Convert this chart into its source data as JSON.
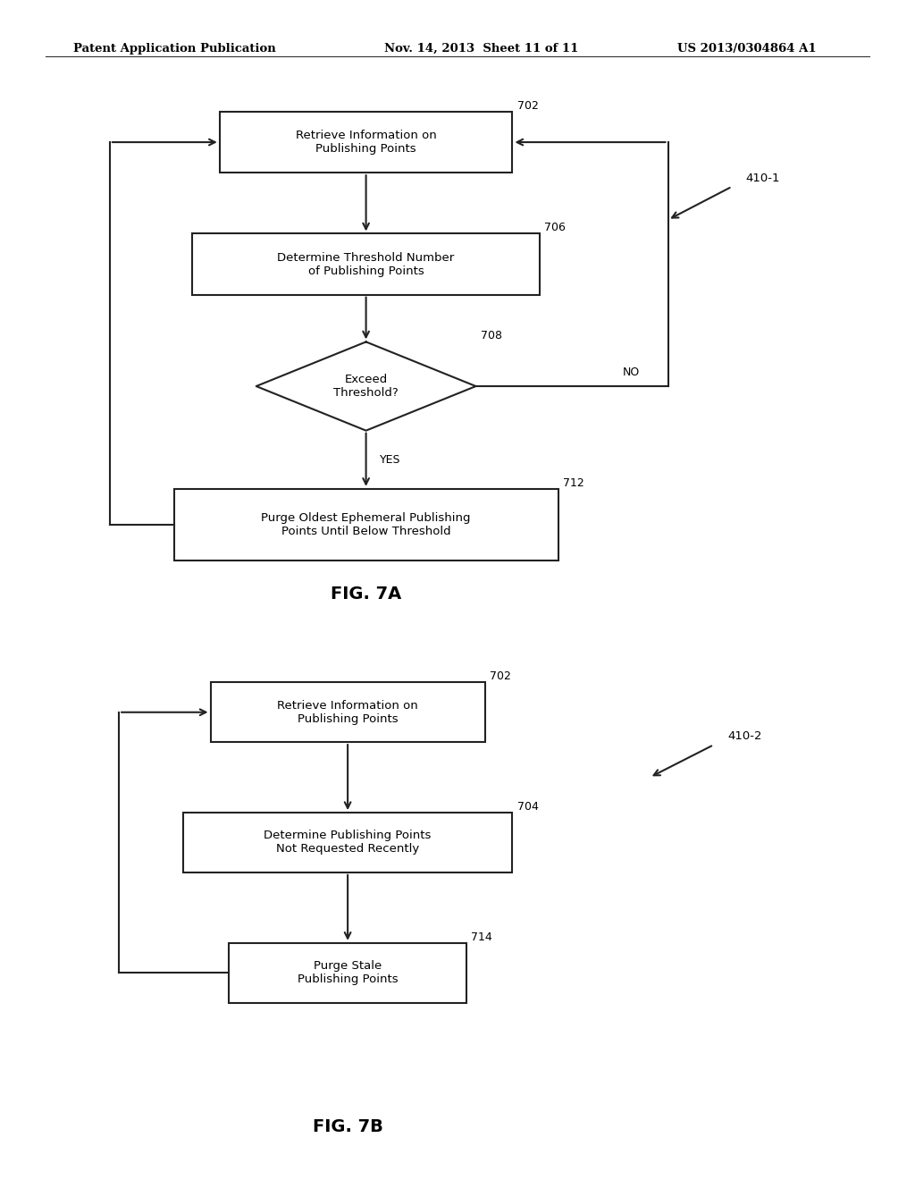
{
  "bg_color": "#ffffff",
  "header_text": "Patent Application Publication    Nov. 14, 2013  Sheet 11 of 11    US 2013/0304864 A1",
  "fig7a_label": "FIG. 7A",
  "fig7b_label": "FIG. 7B"
}
